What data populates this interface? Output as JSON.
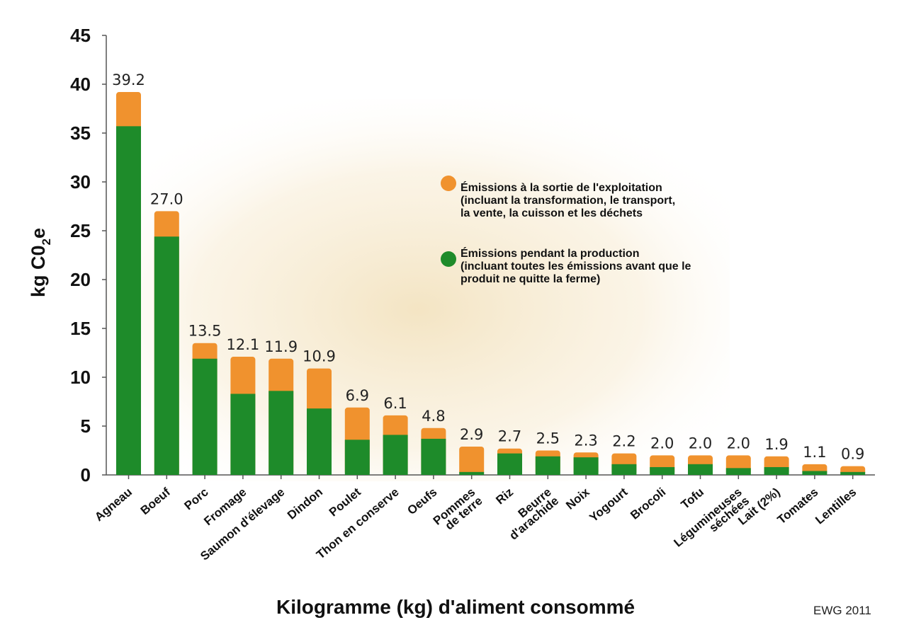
{
  "chart_data": {
    "type": "bar",
    "stacked": true,
    "title": "",
    "xlabel": "Kilogramme (kg) d'aliment consommé",
    "ylabel_main": "kg C0",
    "ylabel_sub": "2",
    "ylabel_tail": "e",
    "ylim": [
      0,
      45
    ],
    "yticks": [
      0,
      5,
      10,
      15,
      20,
      25,
      30,
      35,
      40,
      45
    ],
    "categories": [
      "Agneau",
      "Boeuf",
      "Porc",
      "Fromage",
      "Saumon d'élevage",
      "Dindon",
      "Poulet",
      "Thon en conserve",
      "Oeufs",
      "Pommes\nde terre",
      "Riz",
      "Beurre\nd'arachide",
      "Noix",
      "Yogourt",
      "Brocoli",
      "Tofu",
      "Légumineuses\nséchées",
      "Lait (2%)",
      "Tomates",
      "Lentilles"
    ],
    "totals_labels": [
      "39.2",
      "27.0",
      "13.5",
      "12.1",
      "11.9",
      "10.9",
      "6.9",
      "6.1",
      "4.8",
      "2.9",
      "2.7",
      "2.5",
      "2.3",
      "2.2",
      "2.0",
      "2.0",
      "2.0",
      "1.9",
      "1.1",
      "0.9"
    ],
    "series": [
      {
        "name": "Émissions pendant la production\n(incluant toutes les émissions avant que le\nproduit ne quitte la ferme)",
        "color": "#1e8b2a",
        "values": [
          35.7,
          24.4,
          11.9,
          8.3,
          8.6,
          6.8,
          3.6,
          4.1,
          3.7,
          0.3,
          2.2,
          1.9,
          1.8,
          1.1,
          0.8,
          1.1,
          0.7,
          0.8,
          0.4,
          0.3
        ]
      },
      {
        "name": "Émissions à la sortie de l'exploitation\n(incluant la transformation, le transport,\nla vente, la cuisson et les déchets",
        "color": "#f0922e",
        "values": [
          3.5,
          2.6,
          1.6,
          3.8,
          3.3,
          4.1,
          3.3,
          2.0,
          1.1,
          2.6,
          0.5,
          0.6,
          0.5,
          1.1,
          1.2,
          0.9,
          1.3,
          1.1,
          0.7,
          0.6
        ]
      }
    ],
    "legend_position": "top-right",
    "source": "EWG 2011"
  }
}
